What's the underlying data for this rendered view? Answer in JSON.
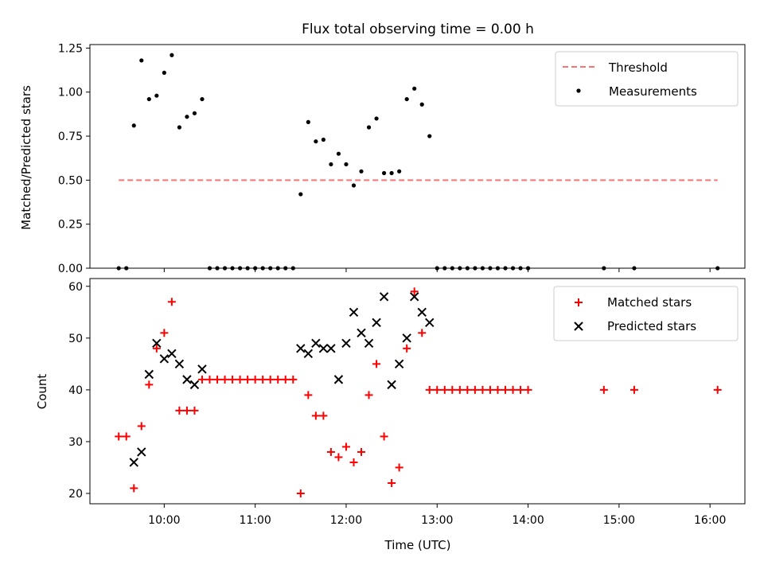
{
  "chart_data": [
    {
      "type": "scatter",
      "title": "Flux total observing time = 0.00 h",
      "xlabel": "",
      "ylabel": "Matched/Predicted stars",
      "xlim": [
        "09:11",
        "16:23"
      ],
      "ylim": [
        0,
        1.27
      ],
      "yticks": [
        0,
        0.25,
        0.5,
        0.75,
        1.0,
        1.25
      ],
      "ytick_labels": [
        "0.00",
        "0.25",
        "0.50",
        "0.75",
        "1.00",
        "1.25"
      ],
      "legend_placement": "upper right",
      "colors": {
        "threshold": "#ff7070",
        "measurements": "#000000"
      },
      "series": [
        {
          "name": "Threshold",
          "kind": "dashed-line",
          "x": [
            "09:30",
            "16:05"
          ],
          "y": [
            0.5,
            0.5
          ]
        },
        {
          "name": "Measurements",
          "kind": "points",
          "x": [
            "09:30",
            "09:35",
            "09:40",
            "09:45",
            "09:50",
            "09:55",
            "10:00",
            "10:05",
            "10:10",
            "10:15",
            "10:20",
            "10:25",
            "10:30",
            "10:35",
            "10:40",
            "10:45",
            "10:50",
            "10:55",
            "11:00",
            "11:05",
            "11:10",
            "11:15",
            "11:20",
            "11:25",
            "11:30",
            "11:35",
            "11:40",
            "11:45",
            "11:50",
            "11:55",
            "12:00",
            "12:05",
            "12:10",
            "12:15",
            "12:20",
            "12:25",
            "12:30",
            "12:35",
            "12:40",
            "12:45",
            "12:50",
            "12:55",
            "13:00",
            "13:05",
            "13:10",
            "13:15",
            "13:20",
            "13:25",
            "13:30",
            "13:35",
            "13:40",
            "13:45",
            "13:50",
            "13:55",
            "14:00",
            "14:50",
            "15:10",
            "16:05"
          ],
          "y": [
            0,
            0,
            0.81,
            1.18,
            0.96,
            0.98,
            1.11,
            1.21,
            0.8,
            0.86,
            0.88,
            0.96,
            0,
            0,
            0,
            0,
            0,
            0,
            0,
            0,
            0,
            0,
            0,
            0,
            0.42,
            0.83,
            0.72,
            0.73,
            0.59,
            0.65,
            0.59,
            0.47,
            0.55,
            0.8,
            0.85,
            0.54,
            0.54,
            0.55,
            0.96,
            1.02,
            0.93,
            0.75,
            0,
            0,
            0,
            0,
            0,
            0,
            0,
            0,
            0,
            0,
            0,
            0,
            0,
            0,
            0,
            0
          ]
        }
      ]
    },
    {
      "type": "scatter",
      "title": "",
      "xlabel": "Time (UTC)",
      "ylabel": "Count",
      "xlim": [
        "09:11",
        "16:23"
      ],
      "ylim": [
        18,
        61.5
      ],
      "yticks": [
        20,
        30,
        40,
        50,
        60
      ],
      "xticks": [
        "10:00",
        "11:00",
        "12:00",
        "13:00",
        "14:00",
        "15:00",
        "16:00"
      ],
      "legend_placement": "upper right",
      "colors": {
        "matched": "#ff0000",
        "predicted": "#000000"
      },
      "series": [
        {
          "name": "Matched stars",
          "marker": "plus",
          "x": [
            "09:30",
            "09:35",
            "09:40",
            "09:45",
            "09:50",
            "09:55",
            "10:00",
            "10:05",
            "10:10",
            "10:15",
            "10:20",
            "10:25",
            "10:30",
            "10:35",
            "10:40",
            "10:45",
            "10:50",
            "10:55",
            "11:00",
            "11:05",
            "11:10",
            "11:15",
            "11:20",
            "11:25",
            "11:30",
            "11:35",
            "11:40",
            "11:45",
            "11:50",
            "11:55",
            "12:00",
            "12:05",
            "12:10",
            "12:15",
            "12:20",
            "12:25",
            "12:30",
            "12:35",
            "12:40",
            "12:45",
            "12:50",
            "12:55",
            "13:00",
            "13:05",
            "13:10",
            "13:15",
            "13:20",
            "13:25",
            "13:30",
            "13:35",
            "13:40",
            "13:45",
            "13:50",
            "13:55",
            "14:00",
            "14:50",
            "15:10",
            "16:05"
          ],
          "y": [
            31,
            31,
            21,
            33,
            41,
            48,
            51,
            57,
            36,
            36,
            36,
            42,
            42,
            42,
            42,
            42,
            42,
            42,
            42,
            42,
            42,
            42,
            42,
            42,
            20,
            39,
            35,
            35,
            28,
            27,
            29,
            26,
            28,
            39,
            45,
            31,
            22,
            25,
            48,
            59,
            51,
            40,
            40,
            40,
            40,
            40,
            40,
            40,
            40,
            40,
            40,
            40,
            40,
            40,
            40,
            40,
            40,
            40
          ]
        },
        {
          "name": "Predicted stars",
          "marker": "x",
          "x": [
            "09:40",
            "09:45",
            "09:50",
            "09:55",
            "10:00",
            "10:05",
            "10:10",
            "10:15",
            "10:20",
            "10:25",
            "11:30",
            "11:35",
            "11:40",
            "11:45",
            "11:50",
            "11:55",
            "12:00",
            "12:05",
            "12:10",
            "12:15",
            "12:20",
            "12:25",
            "12:30",
            "12:35",
            "12:40",
            "12:45",
            "12:50",
            "12:55"
          ],
          "y": [
            26,
            28,
            43,
            49,
            46,
            47,
            45,
            42,
            41,
            44,
            48,
            47,
            49,
            48,
            48,
            42,
            49,
            55,
            51,
            49,
            53,
            58,
            41,
            45,
            50,
            58,
            55,
            53
          ]
        }
      ]
    }
  ]
}
